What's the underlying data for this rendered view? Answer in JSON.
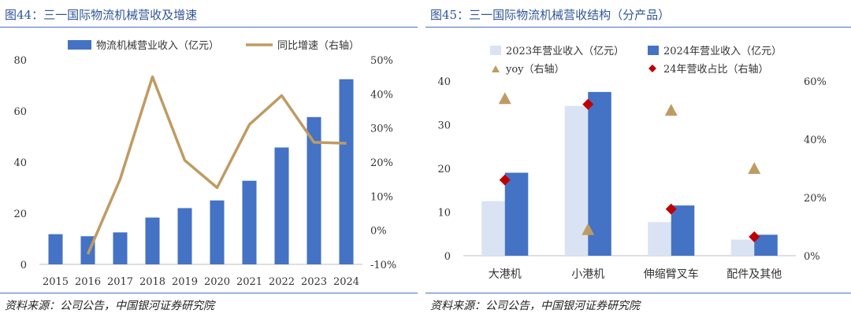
{
  "figures": [
    {
      "title": "图44：三一国际物流机械营收及增速",
      "source": "资料来源：公司公告，中国银河证券研究院"
    },
    {
      "title": "图45：三一国际物流机械营收结构（分产品）",
      "source": "资料来源：公司公告，中国银河证券研究院"
    }
  ],
  "colors": {
    "title": "#2f5597",
    "bar2024": "#4472c4",
    "bar2023": "#dae3f3",
    "line": "#bf9b63",
    "triangle": "#bf9b63",
    "diamond": "#c00000",
    "rule": "#4472c4"
  },
  "chart_data": [
    {
      "type": "bar",
      "categories": [
        "2015",
        "2016",
        "2017",
        "2018",
        "2019",
        "2020",
        "2021",
        "2022",
        "2023",
        "2024"
      ],
      "series": [
        {
          "name": "物流机械营业收入（亿元）",
          "type": "bar",
          "axis": "left",
          "values": [
            11.8,
            11.0,
            12.5,
            18.3,
            22.0,
            25.0,
            32.7,
            45.7,
            57.6,
            72.4
          ]
        },
        {
          "name": "同比增速（右轴）",
          "type": "line",
          "axis": "right",
          "values": [
            null,
            -7.0,
            15.0,
            45.0,
            20.5,
            12.5,
            31.0,
            39.5,
            25.8,
            25.5
          ]
        }
      ],
      "ylim": [
        0,
        80
      ],
      "yticks": [
        "0",
        "20",
        "40",
        "60",
        "80"
      ],
      "y2lim": [
        -10,
        50
      ],
      "y2ticks": [
        "-10%",
        "0%",
        "10%",
        "20%",
        "30%",
        "40%",
        "50%"
      ],
      "legend_position": "top"
    },
    {
      "type": "bar",
      "categories": [
        "大港机",
        "小港机",
        "伸缩臂叉车",
        "配件及其他"
      ],
      "series": [
        {
          "name": "2023年营业收入（亿元）",
          "type": "bar",
          "axis": "left",
          "values": [
            12.5,
            34.3,
            7.7,
            3.7
          ]
        },
        {
          "name": "2024年营业收入（亿元）",
          "type": "bar",
          "axis": "left",
          "values": [
            19.0,
            37.5,
            11.5,
            4.8
          ]
        },
        {
          "name": "yoy（右轴）",
          "type": "scatter",
          "marker": "triangle",
          "axis": "right",
          "values": [
            54,
            9,
            50,
            30
          ]
        },
        {
          "name": "24年营收占比（右轴）",
          "type": "scatter",
          "marker": "diamond",
          "axis": "right",
          "values": [
            26,
            52,
            16,
            6.5
          ]
        }
      ],
      "ylim": [
        0,
        40
      ],
      "yticks": [
        "0",
        "10",
        "20",
        "30",
        "40"
      ],
      "y2lim": [
        0,
        60
      ],
      "y2ticks": [
        "0%",
        "20%",
        "40%",
        "60%"
      ],
      "legend_position": "top"
    }
  ]
}
